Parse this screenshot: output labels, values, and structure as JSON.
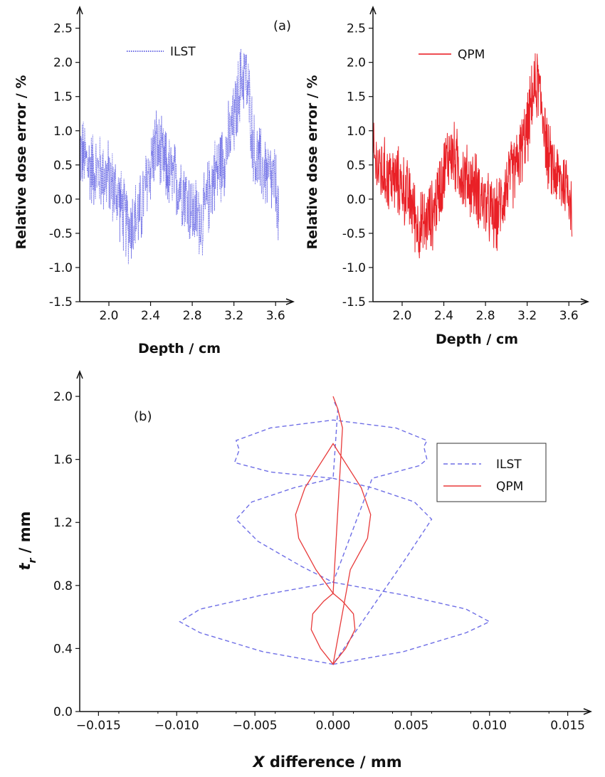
{
  "panel_labels": {
    "a": "(a)",
    "b": "(b)"
  },
  "colors": {
    "ilst": "#3b3bdc",
    "qpm": "#e8141a",
    "ilst_dashed": "#6e6ee6",
    "qpm_line": "#e83a3a",
    "axis": "#111111"
  },
  "chart_data": [
    {
      "type": "line",
      "panel": "a-left",
      "xlabel": "Depth / cm",
      "ylabel": "Relative dose error / %",
      "xlim": [
        1.72,
        3.66
      ],
      "ylim": [
        -1.5,
        2.6
      ],
      "xticks": [
        2.0,
        2.4,
        2.8,
        3.2,
        3.6
      ],
      "xtick_labels": [
        "2.0",
        "2.4",
        "2.8",
        "3.2",
        "3.6"
      ],
      "yticks": [
        -1.5,
        -1.0,
        -0.5,
        0.0,
        0.5,
        1.0,
        1.5,
        2.0,
        2.5
      ],
      "ytick_labels": [
        "-1.5",
        "-1.0",
        "-0.5",
        "0.0",
        "0.5",
        "1.0",
        "1.5",
        "2.0",
        "2.5"
      ],
      "legend": "top-left",
      "series": [
        {
          "name": "ILST",
          "style": "noisy-dotted",
          "x": [
            1.72,
            1.8,
            1.9,
            2.0,
            2.1,
            2.15,
            2.2,
            2.3,
            2.4,
            2.45,
            2.5,
            2.6,
            2.7,
            2.8,
            2.9,
            3.0,
            3.1,
            3.2,
            3.25,
            3.3,
            3.35,
            3.4,
            3.5,
            3.6,
            3.63
          ],
          "y": [
            0.7,
            0.5,
            0.4,
            0.3,
            0.0,
            -0.3,
            -0.4,
            -0.2,
            0.5,
            0.8,
            0.6,
            0.3,
            0.2,
            -0.2,
            -0.3,
            0.3,
            0.6,
            1.1,
            1.6,
            1.9,
            1.4,
            0.6,
            0.4,
            0.2,
            -0.3
          ],
          "noise": 0.55
        }
      ]
    },
    {
      "type": "line",
      "panel": "a-right",
      "xlabel": "Depth / cm",
      "ylabel": "Relative dose error / %",
      "xlim": [
        1.72,
        3.66
      ],
      "ylim": [
        -1.5,
        2.6
      ],
      "xticks": [
        2.0,
        2.4,
        2.8,
        3.2,
        3.6
      ],
      "xtick_labels": [
        "2.0",
        "2.4",
        "2.8",
        "3.2",
        "3.6"
      ],
      "yticks": [
        -1.5,
        -1.0,
        -0.5,
        0.0,
        0.5,
        1.0,
        1.5,
        2.0,
        2.5
      ],
      "ytick_labels": [
        "-1.5",
        "-1.0",
        "-0.5",
        "0.0",
        "0.5",
        "1.0",
        "1.5",
        "2.0",
        "2.5"
      ],
      "legend": "top-left",
      "series": [
        {
          "name": "QPM",
          "style": "noisy-solid",
          "x": [
            1.72,
            1.8,
            1.9,
            2.0,
            2.1,
            2.15,
            2.2,
            2.3,
            2.4,
            2.45,
            2.5,
            2.6,
            2.7,
            2.8,
            2.9,
            3.0,
            3.1,
            3.2,
            3.25,
            3.3,
            3.35,
            3.4,
            3.5,
            3.6,
            3.63
          ],
          "y": [
            0.6,
            0.4,
            0.3,
            0.2,
            -0.1,
            -0.4,
            -0.4,
            -0.2,
            0.4,
            0.7,
            0.6,
            0.3,
            0.2,
            -0.1,
            -0.3,
            0.2,
            0.5,
            1.0,
            1.5,
            1.7,
            1.3,
            0.6,
            0.3,
            0.2,
            -0.2
          ],
          "noise": 0.5
        }
      ]
    },
    {
      "type": "line",
      "panel": "b",
      "xlabel_italic": "X",
      "xlabel": " difference / mm",
      "ylabel_italic": "t",
      "ylabel_sub": "r",
      "ylabel": " /  mm",
      "xlim": [
        -0.0162,
        0.0162
      ],
      "ylim": [
        0.0,
        2.05
      ],
      "xticks": [
        -0.015,
        -0.01,
        -0.005,
        0.0,
        0.005,
        0.01,
        0.015
      ],
      "xtick_labels": [
        "−0.015",
        "−0.010",
        "−0.005",
        "0.000",
        "0.005",
        "0.010",
        "0.015"
      ],
      "yticks": [
        0.0,
        0.4,
        0.8,
        1.2,
        1.6,
        2.0
      ],
      "ytick_labels": [
        "0.0",
        "0.4",
        "0.8",
        "1.2",
        "1.6",
        "2.0"
      ],
      "legend": "right",
      "series": [
        {
          "name": "ILST",
          "style": "dashed",
          "x": [
            0.0,
            0.0045,
            0.0085,
            0.01,
            0.0085,
            0.0045,
            0.0,
            -0.0045,
            -0.0085,
            -0.0098,
            -0.0085,
            -0.0045,
            0.0,
            0.0045,
            0.0063,
            0.0052,
            0.0025,
            0.0,
            -0.0025,
            -0.0052,
            -0.0062,
            -0.0048,
            -0.002,
            0.0,
            0.0025,
            0.0055,
            0.006,
            0.0058,
            0.006,
            0.004,
            0.0,
            -0.004,
            -0.0062,
            -0.006,
            -0.0063,
            -0.004,
            0.0,
            0.0003,
            0.0
          ],
          "y": [
            0.3,
            0.38,
            0.5,
            0.57,
            0.65,
            0.74,
            0.82,
            0.74,
            0.65,
            0.57,
            0.5,
            0.38,
            0.3,
            0.95,
            1.22,
            1.33,
            1.42,
            1.48,
            1.42,
            1.33,
            1.22,
            1.08,
            0.92,
            0.82,
            1.48,
            1.56,
            1.6,
            1.68,
            1.72,
            1.8,
            1.85,
            1.8,
            1.72,
            1.66,
            1.58,
            1.52,
            1.48,
            1.92,
            1.98
          ]
        },
        {
          "name": "QPM",
          "style": "solid",
          "x": [
            0.0,
            0.0008,
            0.0014,
            0.0013,
            0.0006,
            0.0,
            -0.0006,
            -0.0013,
            -0.0014,
            -0.0008,
            0.0,
            0.0011,
            0.0022,
            0.0024,
            0.0018,
            0.0,
            -0.0018,
            -0.0024,
            -0.0022,
            -0.0011,
            0.0,
            0.0006,
            0.0003,
            0.0
          ],
          "y": [
            0.3,
            0.4,
            0.52,
            0.62,
            0.7,
            0.75,
            0.7,
            0.62,
            0.52,
            0.4,
            0.3,
            0.9,
            1.1,
            1.25,
            1.42,
            1.7,
            1.42,
            1.25,
            1.1,
            0.9,
            0.75,
            1.8,
            1.92,
            2.0
          ]
        }
      ]
    }
  ]
}
